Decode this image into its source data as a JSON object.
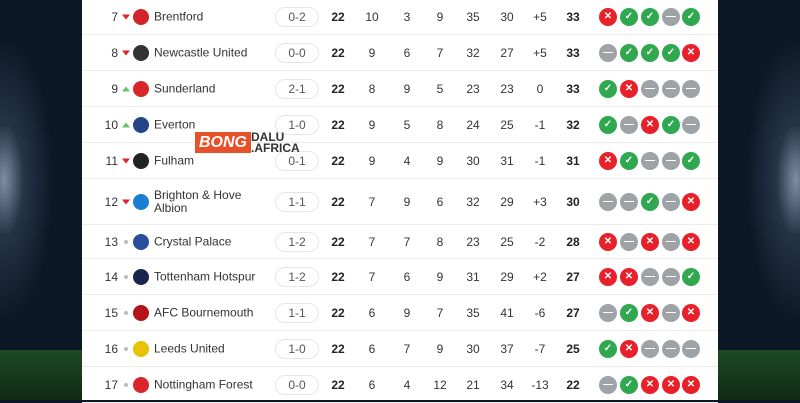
{
  "watermark": {
    "text1": "BONG",
    "text2": "DALU",
    "text3": ".AFRICA"
  },
  "colors": {
    "win": "#2fa84f",
    "loss": "#e8202a",
    "draw": "#9ea3a8",
    "up": "#6cc06c",
    "down": "#e0202a"
  },
  "rows": [
    {
      "rank": "7",
      "move": "down",
      "team": "Brentford",
      "crest": "#d2232a",
      "score": "0-2",
      "p": "22",
      "w": "10",
      "d": "3",
      "l": "9",
      "gf": "35",
      "ga": "30",
      "gd": "+5",
      "pts": "33",
      "form": [
        "L",
        "W",
        "W",
        "D",
        "W"
      ]
    },
    {
      "rank": "8",
      "move": "down",
      "team": "Newcastle United",
      "crest": "#333333",
      "score": "0-0",
      "p": "22",
      "w": "9",
      "d": "6",
      "l": "7",
      "gf": "32",
      "ga": "27",
      "gd": "+5",
      "pts": "33",
      "form": [
        "D",
        "W",
        "W",
        "W",
        "L"
      ]
    },
    {
      "rank": "9",
      "move": "up",
      "team": "Sunderland",
      "crest": "#d9262a",
      "score": "2-1",
      "p": "22",
      "w": "8",
      "d": "9",
      "l": "5",
      "gf": "23",
      "ga": "23",
      "gd": "0",
      "pts": "33",
      "form": [
        "W",
        "L",
        "D",
        "D",
        "D"
      ]
    },
    {
      "rank": "10",
      "move": "up",
      "team": "Everton",
      "crest": "#274488",
      "score": "1-0",
      "p": "22",
      "w": "9",
      "d": "5",
      "l": "8",
      "gf": "24",
      "ga": "25",
      "gd": "-1",
      "pts": "32",
      "form": [
        "W",
        "D",
        "L",
        "W",
        "D"
      ]
    },
    {
      "rank": "11",
      "move": "down",
      "team": "Fulham",
      "crest": "#222222",
      "score": "0-1",
      "p": "22",
      "w": "9",
      "d": "4",
      "l": "9",
      "gf": "30",
      "ga": "31",
      "gd": "-1",
      "pts": "31",
      "form": [
        "L",
        "W",
        "D",
        "D",
        "W"
      ]
    },
    {
      "rank": "12",
      "move": "down",
      "team": "Brighton & Hove Albion",
      "crest": "#1b7fd1",
      "score": "1-1",
      "p": "22",
      "w": "7",
      "d": "9",
      "l": "6",
      "gf": "32",
      "ga": "29",
      "gd": "+3",
      "pts": "30",
      "form": [
        "D",
        "D",
        "W",
        "D",
        "L"
      ]
    },
    {
      "rank": "13",
      "move": "same",
      "team": "Crystal Palace",
      "crest": "#2a4c9c",
      "score": "1-2",
      "p": "22",
      "w": "7",
      "d": "7",
      "l": "8",
      "gf": "23",
      "ga": "25",
      "gd": "-2",
      "pts": "28",
      "form": [
        "L",
        "D",
        "L",
        "D",
        "L"
      ]
    },
    {
      "rank": "14",
      "move": "same",
      "team": "Tottenham Hotspur",
      "crest": "#1a2450",
      "score": "1-2",
      "p": "22",
      "w": "7",
      "d": "6",
      "l": "9",
      "gf": "31",
      "ga": "29",
      "gd": "+2",
      "pts": "27",
      "form": [
        "L",
        "L",
        "D",
        "D",
        "W"
      ]
    },
    {
      "rank": "15",
      "move": "same",
      "team": "AFC Bournemouth",
      "crest": "#b5121b",
      "score": "1-1",
      "p": "22",
      "w": "6",
      "d": "9",
      "l": "7",
      "gf": "35",
      "ga": "41",
      "gd": "-6",
      "pts": "27",
      "form": [
        "D",
        "W",
        "L",
        "D",
        "L"
      ]
    },
    {
      "rank": "16",
      "move": "same",
      "team": "Leeds United",
      "crest": "#e8c300",
      "score": "1-0",
      "p": "22",
      "w": "6",
      "d": "7",
      "l": "9",
      "gf": "30",
      "ga": "37",
      "gd": "-7",
      "pts": "25",
      "form": [
        "W",
        "L",
        "D",
        "D",
        "D"
      ]
    },
    {
      "rank": "17",
      "move": "same",
      "team": "Nottingham Forest",
      "crest": "#d9262a",
      "score": "0-0",
      "p": "22",
      "w": "6",
      "d": "4",
      "l": "12",
      "gf": "21",
      "ga": "34",
      "gd": "-13",
      "pts": "22",
      "form": [
        "D",
        "W",
        "L",
        "L",
        "L"
      ]
    }
  ]
}
